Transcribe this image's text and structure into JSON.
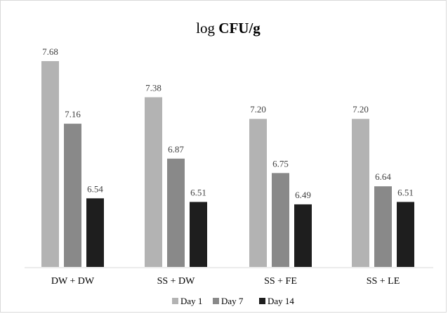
{
  "chart_data": {
    "type": "bar",
    "title": {
      "prefix": "log ",
      "bold": "CFU/g"
    },
    "categories": [
      "DW + DW",
      "SS + DW",
      "SS + FE",
      "SS + LE"
    ],
    "series": [
      {
        "name": "Day 1",
        "color": "#b3b3b3",
        "values": [
          7.68,
          7.38,
          7.2,
          7.2
        ]
      },
      {
        "name": "Day 7",
        "color": "#898989",
        "values": [
          7.16,
          6.87,
          6.75,
          6.64
        ]
      },
      {
        "name": "Day 14",
        "color": "#1e1e1e",
        "values": [
          6.54,
          6.51,
          6.49,
          6.51
        ]
      }
    ],
    "value_labels": [
      [
        "7.68",
        "7.16",
        "6.54"
      ],
      [
        "7.38",
        "6.87",
        "6.51"
      ],
      [
        "7.20",
        "6.75",
        "6.49"
      ],
      [
        "7.20",
        "6.64",
        "6.51"
      ]
    ],
    "ylim": [
      5.97,
      7.68
    ],
    "grid": false,
    "legend_position": "bottom"
  }
}
